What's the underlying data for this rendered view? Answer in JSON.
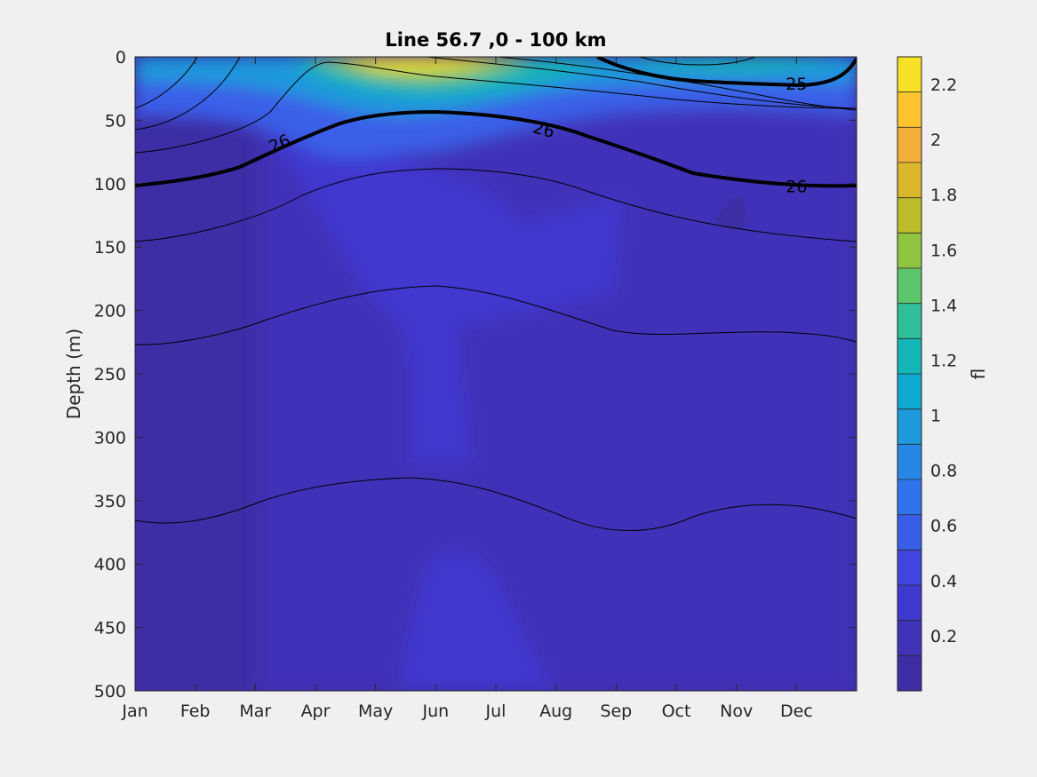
{
  "chart_data": {
    "type": "heatmap",
    "title": "Line 56.7 ,0 - 100 km",
    "xlabel": "",
    "ylabel": "Depth (m)",
    "colorbar_label": "fl",
    "x_ticks": [
      "Jan",
      "Feb",
      "Mar",
      "Apr",
      "May",
      "Jun",
      "Jul",
      "Aug",
      "Sep",
      "Oct",
      "Nov",
      "Dec"
    ],
    "y_ticks": [
      "0",
      "50",
      "100",
      "150",
      "200",
      "250",
      "300",
      "350",
      "400",
      "450",
      "500"
    ],
    "ylim": [
      0,
      500
    ],
    "y_reversed": true,
    "colorbar_ticks": [
      "0.2",
      "0.4",
      "0.6",
      "0.8",
      "1",
      "1.2",
      "1.4",
      "1.6",
      "1.8",
      "2",
      "2.2"
    ],
    "colorbar_range": [
      0,
      2.3
    ],
    "color_levels": [
      "#3d2ea5",
      "#4033b8",
      "#4039cf",
      "#4245de",
      "#3a5ee8",
      "#2f74ed",
      "#2787e6",
      "#1e99dc",
      "#0eaacf",
      "#14b5b6",
      "#2fbf9b",
      "#5bc56a",
      "#8fc440",
      "#bebb2b",
      "#dbb72b",
      "#f4ae3a",
      "#fdc430",
      "#f6e126"
    ],
    "contour_labels": [
      {
        "label": "26",
        "month": 2.4,
        "depth": 68,
        "angle": -25
      },
      {
        "label": "26",
        "month": 6.8,
        "depth": 57,
        "angle": 15
      },
      {
        "label": "25",
        "month": 11.0,
        "depth": 21,
        "angle": 0
      },
      {
        "label": "26",
        "month": 11.0,
        "depth": 102,
        "angle": 0
      }
    ]
  }
}
